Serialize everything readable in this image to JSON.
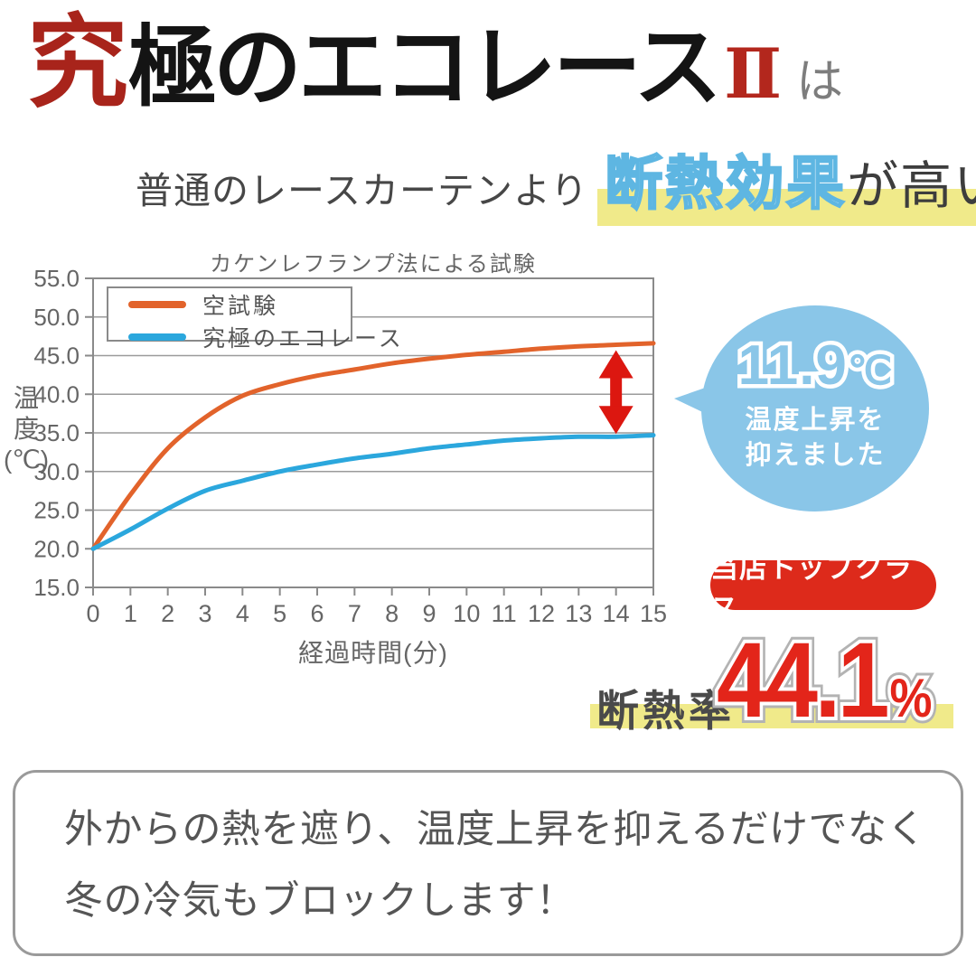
{
  "logo": {
    "part_red": "究",
    "part_black": "極のエコレース",
    "part_num": "Ⅱ",
    "suffix": "は",
    "red_color": "#a8241b"
  },
  "headline": {
    "prefix": "普通のレースカーテンより",
    "highlight": "断熱効果",
    "suffix": "が高い！",
    "highlight_text_color": "#5eb6e2",
    "marker_color": "#f0ea8a"
  },
  "chart_data": {
    "type": "line",
    "title": "カケンレフランプ法による試験",
    "xlabel": "経過時間(分)",
    "ylabel": "温度(℃)",
    "ylabel_lines": [
      "温",
      "度",
      "(℃)"
    ],
    "xlim": [
      0,
      15
    ],
    "ylim": [
      15,
      55
    ],
    "x_ticks": [
      0,
      1,
      2,
      3,
      4,
      5,
      6,
      7,
      8,
      9,
      10,
      11,
      12,
      13,
      14,
      15
    ],
    "y_ticks": [
      55,
      50,
      45,
      40,
      35,
      30,
      25,
      20,
      15
    ],
    "grid": "horizontal",
    "legend_position": "top-left",
    "x": [
      0,
      1,
      2,
      3,
      4,
      5,
      6,
      7,
      8,
      9,
      10,
      11,
      12,
      13,
      14,
      15
    ],
    "series": [
      {
        "name": "空試験",
        "color": "#e2632b",
        "values": [
          20.0,
          27.0,
          33.0,
          37.0,
          39.8,
          41.3,
          42.4,
          43.2,
          44.0,
          44.6,
          45.1,
          45.5,
          45.9,
          46.2,
          46.4,
          46.6
        ]
      },
      {
        "name": "究極のエコレース",
        "color": "#2ba7dd",
        "values": [
          20.0,
          22.5,
          25.2,
          27.5,
          28.8,
          30.0,
          30.9,
          31.7,
          32.3,
          33.0,
          33.5,
          34.0,
          34.3,
          34.5,
          34.5,
          34.7
        ]
      }
    ],
    "annotation_arrow": {
      "x": 14,
      "color": "#dc1710"
    }
  },
  "bubble": {
    "value": "11.9",
    "unit": "℃",
    "line1": "温度上昇を",
    "line2": "抑えました",
    "color": "#8ac6e8"
  },
  "badge": {
    "label": "当店トップクラス",
    "color": "#dd2a1b"
  },
  "insulation": {
    "label": "断熱率",
    "value": "44.1",
    "unit": "%",
    "number_color": "#e3251a",
    "marker_color": "#f0ea8a"
  },
  "footer": {
    "line1": "外からの熱を遮り、温度上昇を抑えるだけでなく",
    "line2": "冬の冷気もブロックします！"
  }
}
